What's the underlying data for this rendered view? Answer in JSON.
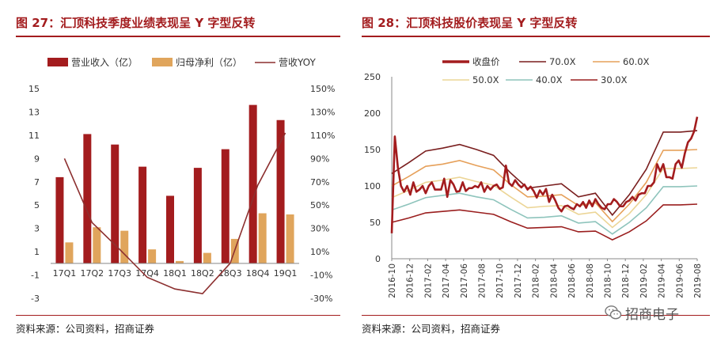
{
  "left_panel": {
    "title": "图 27：汇顶科技季度业绩表现呈 Y 字型反转",
    "source": "资料来源：公司资料，招商证券"
  },
  "right_panel": {
    "title": "图 28：汇顶科技股价表现呈 Y 字型反转",
    "source": "资料来源：公司资料，招商证券"
  },
  "watermark": {
    "text": "招商电子",
    "icon": "wechat-icon"
  },
  "colors": {
    "title_red": "#a31c1e",
    "revenue_bar": "#a31c1e",
    "profit_bar": "#e0a55c",
    "yoy_line": "#8c2f2f",
    "price_line": "#a31c1e",
    "pe70": "#7a1f1f",
    "pe60": "#e6a05a",
    "pe50": "#ecd596",
    "pe40": "#8ec4bc",
    "pe30": "#9a1e1e"
  },
  "chart_data": [
    {
      "type": "bar",
      "categories": [
        "17Q1",
        "17Q2",
        "17Q3",
        "17Q4",
        "18Q1",
        "18Q2",
        "18Q3",
        "18Q4",
        "19Q1"
      ],
      "series": [
        {
          "name": "营业收入（亿）",
          "type": "bar",
          "axis": "left",
          "values": [
            7.4,
            11.1,
            10.2,
            8.3,
            5.8,
            8.2,
            9.8,
            13.6,
            12.3
          ]
        },
        {
          "name": "归母净利（亿）",
          "type": "bar",
          "axis": "left",
          "values": [
            1.8,
            3.1,
            2.8,
            1.2,
            0.2,
            0.9,
            2.1,
            4.3,
            4.2
          ]
        },
        {
          "name": "营收YOY",
          "type": "line",
          "axis": "right",
          "values": [
            90,
            35,
            12,
            -12,
            -22,
            -26,
            0,
            67,
            112
          ]
        }
      ],
      "y_left": {
        "ticks": [
          "15",
          "13",
          "11",
          "9",
          "7",
          "5",
          "3",
          "1",
          "-1",
          "-3"
        ],
        "ylim": [
          -3,
          15
        ]
      },
      "y_right": {
        "ticks": [
          "150%",
          "130%",
          "110%",
          "90%",
          "70%",
          "50%",
          "30%",
          "10%",
          "-10%",
          "-30%"
        ],
        "ylim": [
          -30,
          150
        ]
      }
    },
    {
      "type": "line",
      "x_ticks": [
        "2016-10",
        "2016-12",
        "2017-02",
        "2017-04",
        "2017-06",
        "2017-08",
        "2017-10",
        "2017-12",
        "2018-02",
        "2018-04",
        "2018-06",
        "2018-08",
        "2018-10",
        "2018-12",
        "2019-02",
        "2019-04",
        "2019-06",
        "2019-08"
      ],
      "y_ticks": [
        "250",
        "200",
        "150",
        "100",
        "50",
        "0"
      ],
      "ylim": [
        0,
        250
      ],
      "series": [
        {
          "name": "收盘价",
          "values": [
            35,
            168,
            125,
            100,
            92,
            100,
            88,
            105,
            92,
            95,
            100,
            90,
            100,
            105,
            95,
            95,
            95,
            110,
            85,
            108,
            102,
            92,
            93,
            105,
            93,
            97,
            97,
            100,
            98,
            105,
            92,
            100,
            95,
            100,
            102,
            96,
            98,
            128,
            104,
            100,
            108,
            102,
            98,
            102,
            95,
            99,
            93,
            84,
            94,
            88,
            96,
            78,
            88,
            80,
            70,
            65,
            72,
            73,
            70,
            68,
            75,
            72,
            78,
            70,
            80,
            72,
            82,
            75,
            70,
            68,
            75,
            75,
            82,
            78,
            72,
            72,
            78,
            80,
            85,
            80,
            88,
            90,
            90,
            100,
            100,
            105,
            130,
            120,
            130,
            112,
            112,
            110,
            130,
            135,
            125,
            145,
            160,
            165,
            175,
            195
          ]
        },
        {
          "name": "70.0X",
          "values": [
            117,
            132,
            148,
            152,
            157,
            150,
            142,
            118,
            97,
            100,
            103,
            85,
            90,
            60,
            88,
            123,
            174,
            174,
            176
          ]
        },
        {
          "name": "60.0X",
          "values": [
            100,
            113,
            127,
            130,
            135,
            128,
            122,
            102,
            85,
            86,
            88,
            73,
            77,
            51,
            75,
            105,
            149,
            149,
            150
          ]
        },
        {
          "name": "50.0X",
          "values": [
            84,
            94,
            105,
            108,
            112,
            106,
            101,
            85,
            70,
            72,
            73,
            61,
            64,
            43,
            62,
            88,
            124,
            124,
            125
          ]
        },
        {
          "name": "40.0X",
          "values": [
            67,
            75,
            84,
            87,
            90,
            85,
            81,
            68,
            56,
            57,
            59,
            49,
            51,
            34,
            50,
            70,
            99,
            99,
            100
          ]
        },
        {
          "name": "30.0X",
          "values": [
            50,
            56,
            63,
            65,
            67,
            64,
            61,
            51,
            42,
            43,
            44,
            37,
            38,
            26,
            37,
            52,
            74,
            74,
            75
          ]
        }
      ]
    }
  ]
}
